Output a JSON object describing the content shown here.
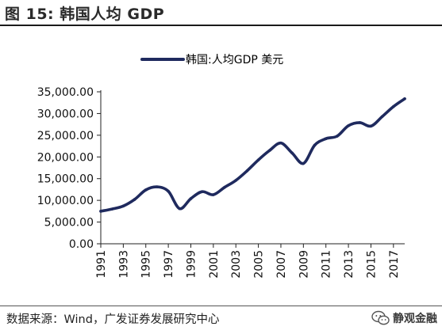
{
  "figure": {
    "title": "图 15:  韩国人均 GDP",
    "source": "数据来源：Wind，广发证券发展研究中心",
    "watermark_text": "静观金融",
    "watermark_icon": "wechat-icon"
  },
  "chart_data": {
    "type": "line",
    "title": "",
    "xlabel": "",
    "ylabel": "",
    "line_color": "#1f2a5e",
    "legend_position": "top-center",
    "x": [
      1991,
      1992,
      1993,
      1994,
      1995,
      1996,
      1997,
      1998,
      1999,
      2000,
      2001,
      2002,
      2003,
      2004,
      2005,
      2006,
      2007,
      2008,
      2009,
      2010,
      2011,
      2012,
      2013,
      2014,
      2015,
      2016,
      2017,
      2018
    ],
    "x_tick_labels": [
      "1991",
      "1993",
      "1995",
      "1997",
      "1999",
      "2001",
      "2003",
      "2005",
      "2007",
      "2009",
      "2011",
      "2013",
      "2015",
      "2017"
    ],
    "y_ticks": [
      0,
      5000,
      10000,
      15000,
      20000,
      25000,
      30000,
      35000
    ],
    "y_tick_labels": [
      "0.00",
      "5,000.00",
      "10,000.00",
      "15,000.00",
      "20,000.00",
      "25,000.00",
      "30,000.00",
      "35,000.00"
    ],
    "ylim": [
      0,
      35000
    ],
    "xlim": [
      1991,
      2018
    ],
    "grid": false,
    "series": [
      {
        "name": "韩国:人均GDP 美元",
        "values": [
          7500,
          8000,
          8700,
          10200,
          12400,
          13100,
          12100,
          8100,
          10400,
          12000,
          11300,
          13000,
          14600,
          16800,
          19300,
          21500,
          23200,
          20900,
          18500,
          22700,
          24200,
          24800,
          27200,
          27900,
          27100,
          29300,
          31600,
          33400
        ]
      }
    ]
  }
}
